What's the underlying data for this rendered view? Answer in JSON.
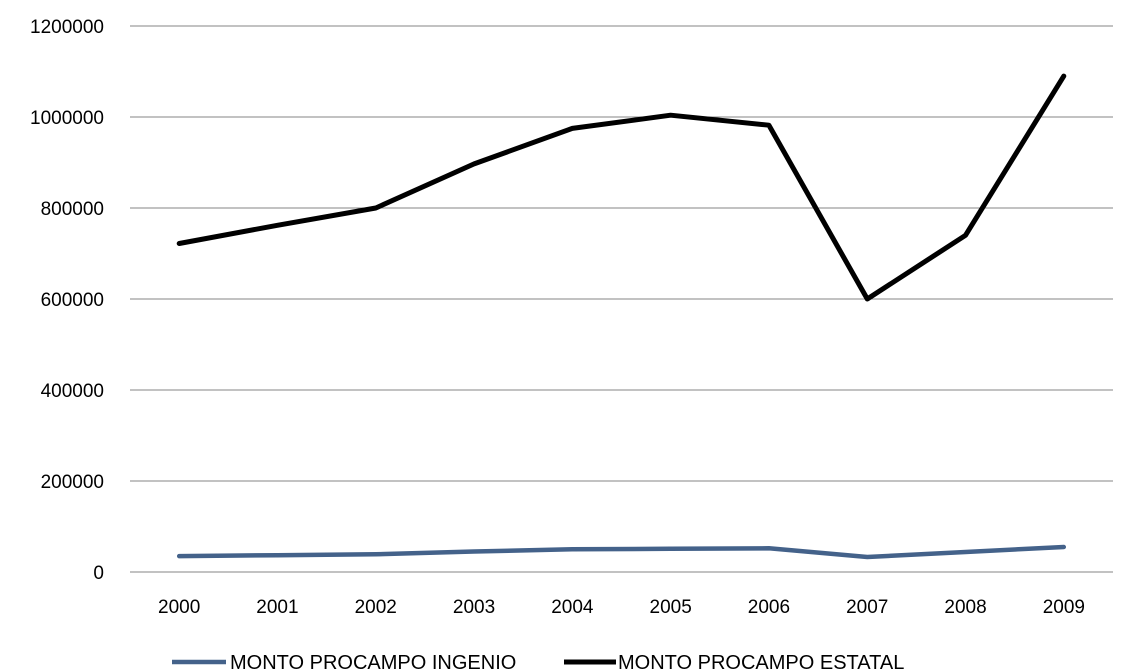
{
  "chart_data": {
    "type": "line",
    "title": "",
    "xlabel": "",
    "ylabel": "",
    "categories": [
      "2000",
      "2001",
      "2002",
      "2003",
      "2004",
      "2005",
      "2006",
      "2007",
      "2008",
      "2009"
    ],
    "ylim": [
      0,
      1200000
    ],
    "yticks": [
      "0",
      "200000",
      "400000",
      "600000",
      "800000",
      "1000000",
      "1200000"
    ],
    "grid": true,
    "legend_position": "bottom",
    "series": [
      {
        "name": "MONTO PROCAMPO INGENIO",
        "color": "#44628A",
        "values": [
          35000,
          37000,
          39000,
          45000,
          50000,
          51000,
          52000,
          33000,
          44000,
          55000
        ]
      },
      {
        "name": "MONTO PROCAMPO ESTATAL",
        "color": "#000000",
        "values": [
          722000,
          762000,
          800000,
          897000,
          975000,
          1004000,
          982000,
          600000,
          740000,
          1090000
        ]
      }
    ]
  }
}
